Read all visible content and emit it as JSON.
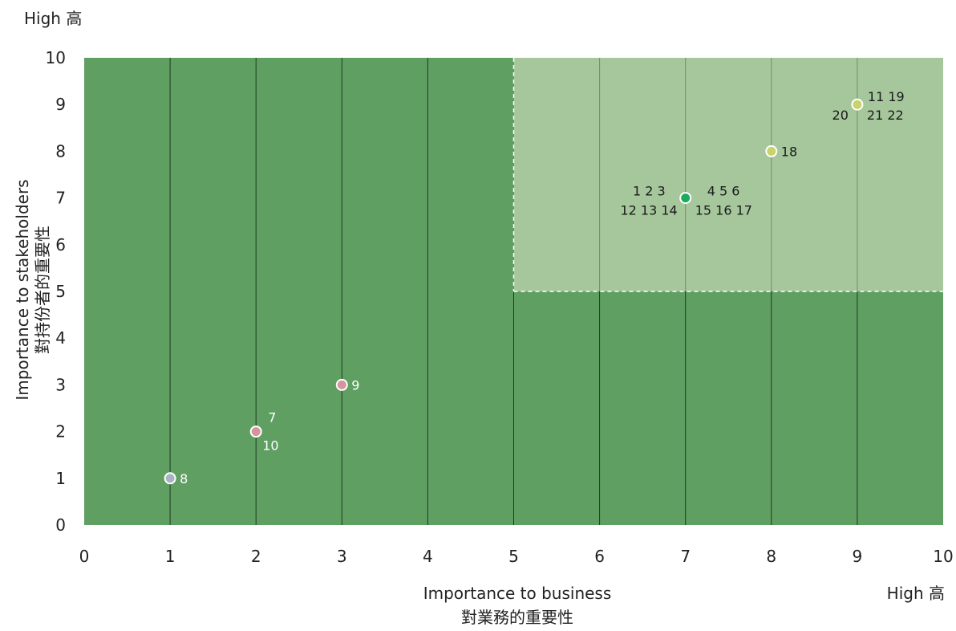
{
  "chart_data": {
    "type": "scatter",
    "xlabel": "Importance to business",
    "xlabel_zh": "對業務的重要性",
    "ylabel": "Importance to stakeholders",
    "ylabel_zh": "對持份者的重要性",
    "x_high_label": "High 高",
    "y_high_label": "High 高",
    "xlim": [
      0,
      10
    ],
    "ylim": [
      0,
      10
    ],
    "x_ticks": [
      "0",
      "1",
      "2",
      "3",
      "4",
      "5",
      "6",
      "7",
      "8",
      "9",
      "10"
    ],
    "y_ticks": [
      "0",
      "1",
      "2",
      "3",
      "4",
      "5",
      "6",
      "7",
      "8",
      "9",
      "10"
    ],
    "highlight_region": {
      "x": [
        5,
        10
      ],
      "y": [
        5,
        10
      ]
    },
    "colors": {
      "background": "#5f9f62",
      "highlight": "#a6c69c",
      "grid": "#1f3a20",
      "grid_highlight": "#6e8f68"
    },
    "points": [
      {
        "x": 1,
        "y": 1,
        "color": "#a9b4c2",
        "label_lines": [
          "8"
        ]
      },
      {
        "x": 2,
        "y": 2,
        "color": "#d4959c",
        "label_lines": [
          "7",
          "10"
        ]
      },
      {
        "x": 3,
        "y": 3,
        "color": "#d4959c",
        "label_lines": [
          "9"
        ]
      },
      {
        "x": 7,
        "y": 7,
        "color": "#1eaa5c",
        "label_lines": [
          "1 2 3",
          "12 13 14",
          "4 5 6",
          "15 16 17"
        ]
      },
      {
        "x": 8,
        "y": 8,
        "color": "#c8d36a",
        "label_lines": [
          "18"
        ]
      },
      {
        "x": 9,
        "y": 9,
        "color": "#c8d36a",
        "label_lines": [
          "11 19",
          "20",
          "21 22"
        ]
      }
    ]
  }
}
